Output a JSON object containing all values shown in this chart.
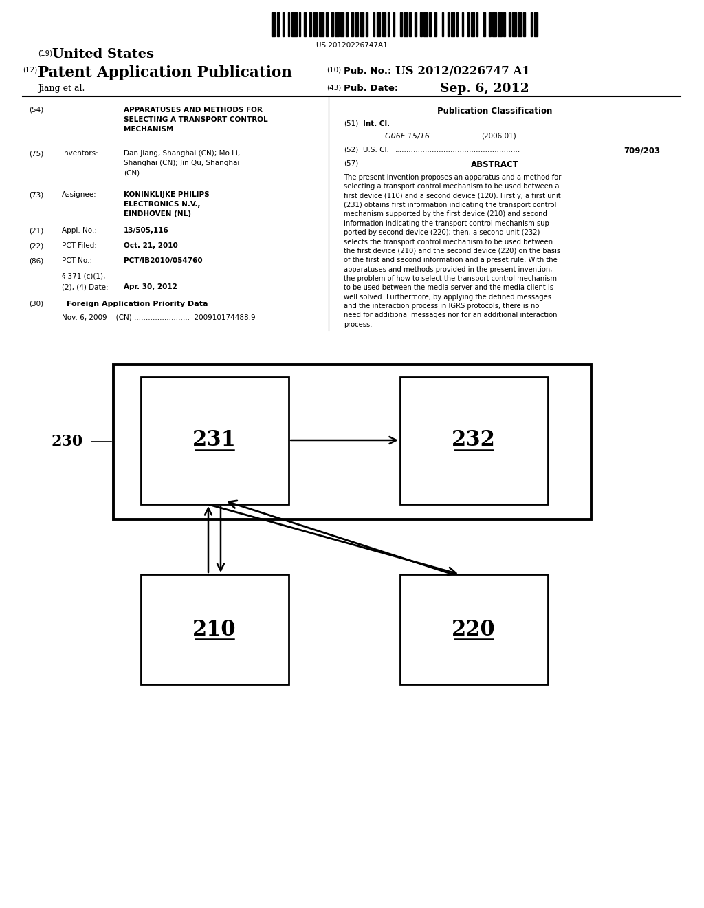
{
  "barcode_text": "US 20120226747A1",
  "header_19_text": "United States",
  "header_12_text": "Patent Application Publication",
  "header_10_val": "US 2012/0226747 A1",
  "header_43_val": "Sep. 6, 2012",
  "author": "Jiang et al.",
  "section_54_title": "APPARATUSES AND METHODS FOR\nSELECTING A TRANSPORT CONTROL\nMECHANISM",
  "section_75_label": "Inventors:",
  "section_75_text": "Dan Jiang, Shanghai (CN); Mo Li,\nShanghai (CN); Jin Qu, Shanghai\n(CN)",
  "section_73_label": "Assignee:",
  "section_73_text": "KONINKLIJKE PHILIPS\nELECTRONICS N.V.,\nEINDHOVEN (NL)",
  "section_21_label": "Appl. No.:",
  "section_21_text": "13/505,116",
  "section_22_label": "PCT Filed:",
  "section_22_text": "Oct. 21, 2010",
  "section_86_label": "PCT No.:",
  "section_86_text": "PCT/IB2010/054760",
  "section_371a": "§ 371 (c)(1),",
  "section_371b": "(2), (4) Date:",
  "section_371_val": "Apr. 30, 2012",
  "section_30_label": "Foreign Application Priority Data",
  "section_30_text": "Nov. 6, 2009    (CN) ........................  200910174488.9",
  "pub_class_title": "Publication Classification",
  "section_51_label": "Int. Cl.",
  "section_51_class": "G06F 15/16",
  "section_51_year": "(2006.01)",
  "section_52_label": "U.S. Cl.",
  "section_52_dots": "......................................................",
  "section_52_val": "709/203",
  "section_57_label": "ABSTRACT",
  "abstract_text": "The present invention proposes an apparatus and a method for\nselecting a transport control mechanism to be used between a\nfirst device (110) and a second device (120). Firstly, a first unit\n(231) obtains first information indicating the transport control\nmechanism supported by the first device (210) and second\ninformation indicating the transport control mechanism sup-\nported by second device (220); then, a second unit (232)\nselects the transport control mechanism to be used between\nthe first device (210) and the second device (220) on the basis\nof the first and second information and a preset rule. With the\napparatuses and methods provided in the present invention,\nthe problem of how to select the transport control mechanism\nto be used between the media server and the media client is\nwell solved. Furthermore, by applying the defined messages\nand the interaction process in IGRS protocols, there is no\nneed for additional messages nor for an additional interaction\nprocess.",
  "bg_color": "#ffffff"
}
